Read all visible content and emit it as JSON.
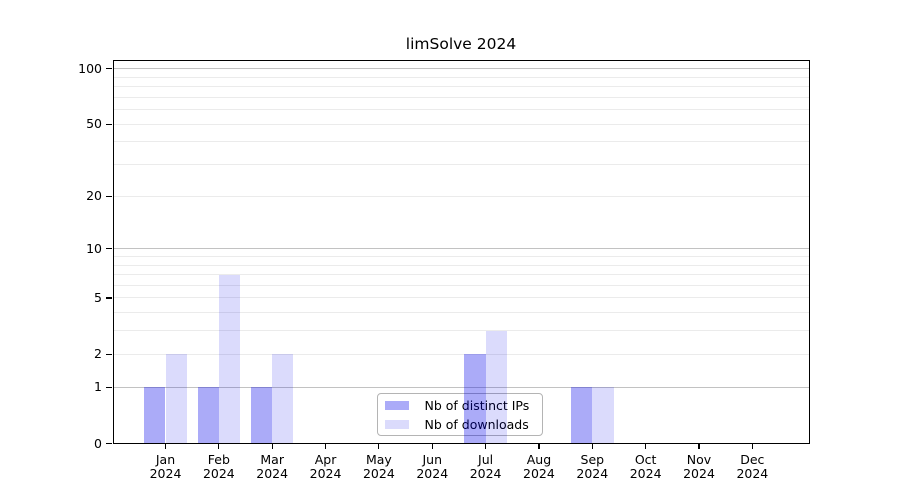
{
  "chart_data": {
    "type": "bar",
    "title": "limSolve 2024",
    "categories": [
      "Jan",
      "Feb",
      "Mar",
      "Apr",
      "May",
      "Jun",
      "Jul",
      "Aug",
      "Sep",
      "Oct",
      "Nov",
      "Dec"
    ],
    "category_year": "2024",
    "series": [
      {
        "name": "Nb of distinct IPs",
        "color": "rgba(0,0,235,0.33)",
        "values": [
          1,
          1,
          1,
          0,
          0,
          0,
          2,
          0,
          1,
          0,
          0,
          0
        ]
      },
      {
        "name": "Nb of downloads",
        "color": "rgba(0,0,235,0.14)",
        "values": [
          2,
          7,
          2,
          0,
          0,
          0,
          3,
          0,
          1,
          0,
          0,
          0
        ]
      }
    ],
    "xlabel": "",
    "ylabel": "",
    "y_axis": {
      "scale": "log1p",
      "ticks": [
        0,
        1,
        2,
        5,
        10,
        20,
        50,
        100
      ],
      "major_gridlines": [
        1,
        10,
        100
      ],
      "minor_gridlines": [
        2,
        3,
        4,
        5,
        6,
        7,
        8,
        9,
        20,
        30,
        40,
        50,
        60,
        70,
        80,
        90
      ],
      "ylim": [
        0,
        115
      ]
    },
    "legend": {
      "position": "lower center inside",
      "entries": [
        "Nb of distinct IPs",
        "Nb of downloads"
      ]
    },
    "grid": true,
    "colors": {
      "major_gridline": "#c2c2c2",
      "minor_gridline": "#ebebeb",
      "axis": "#000000",
      "legend_border": "#b4b4b4",
      "background": "#ffffff"
    }
  }
}
